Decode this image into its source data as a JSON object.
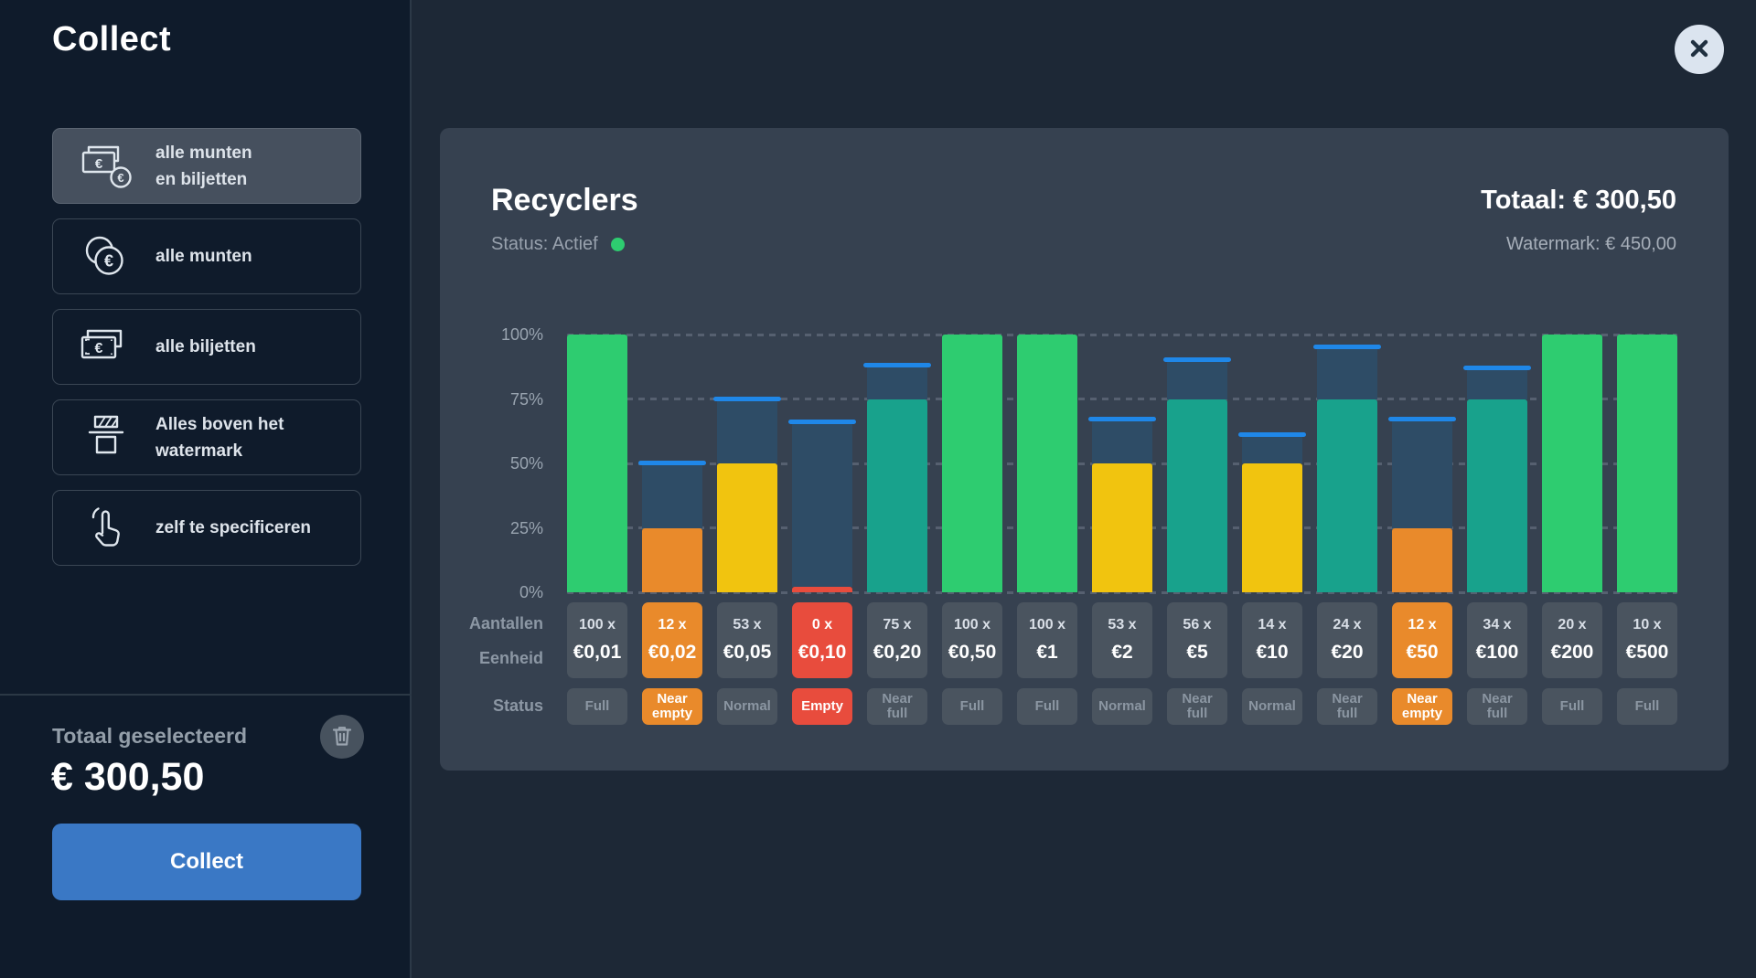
{
  "sidebar": {
    "title": "Collect",
    "options": [
      {
        "icon": "notes-and-coin-icon",
        "lines": [
          "alle munten",
          "en biljetten"
        ],
        "selected": true
      },
      {
        "icon": "coins-icon",
        "lines": [
          "alle munten"
        ],
        "selected": false
      },
      {
        "icon": "banknote-icon",
        "lines": [
          "alle biljetten"
        ],
        "selected": false
      },
      {
        "icon": "watermark-box-icon",
        "lines": [
          "Alles boven het",
          "watermark"
        ],
        "selected": false
      },
      {
        "icon": "hand-tap-icon",
        "lines": [
          "zelf te specificeren"
        ],
        "selected": false
      }
    ],
    "total_selected_label": "Totaal geselecteerd",
    "total_selected_value": "€ 300,50",
    "collect_button_label": "Collect"
  },
  "panel": {
    "title": "Recyclers",
    "status_label": "Status: Actief",
    "total_label": "Totaal: € 300,50",
    "watermark_label": "Watermark: € 450,00"
  },
  "chart_data": {
    "type": "bar",
    "title": "Recyclers",
    "yticks": [
      "100%",
      "75%",
      "50%",
      "25%",
      "0%"
    ],
    "ylim": [
      0,
      100
    ],
    "grid": "dashed horizontal",
    "row_labels": {
      "counts": "Aantallen",
      "unit": "Eenheid",
      "status": "Status"
    },
    "columns": [
      {
        "unit": "€0,01",
        "count": "100 x",
        "fill_pct": 100,
        "watermark_pct": null,
        "status": "Full",
        "level": "full"
      },
      {
        "unit": "€0,02",
        "count": "12 x",
        "fill_pct": 25,
        "watermark_pct": 50,
        "status": "Near empty",
        "level": "near-empty"
      },
      {
        "unit": "€0,05",
        "count": "53 x",
        "fill_pct": 50,
        "watermark_pct": 75,
        "status": "Normal",
        "level": "normal"
      },
      {
        "unit": "€0,10",
        "count": "0 x",
        "fill_pct": 2,
        "watermark_pct": 66,
        "status": "Empty",
        "level": "empty"
      },
      {
        "unit": "€0,20",
        "count": "75 x",
        "fill_pct": 75,
        "watermark_pct": 88,
        "status": "Near full",
        "level": "near-full"
      },
      {
        "unit": "€0,50",
        "count": "100 x",
        "fill_pct": 100,
        "watermark_pct": null,
        "status": "Full",
        "level": "full"
      },
      {
        "unit": "€1",
        "count": "100 x",
        "fill_pct": 100,
        "watermark_pct": null,
        "status": "Full",
        "level": "full"
      },
      {
        "unit": "€2",
        "count": "53 x",
        "fill_pct": 50,
        "watermark_pct": 67,
        "status": "Normal",
        "level": "normal"
      },
      {
        "unit": "€5",
        "count": "56 x",
        "fill_pct": 75,
        "watermark_pct": 90,
        "status": "Near full",
        "level": "near-full"
      },
      {
        "unit": "€10",
        "count": "14 x",
        "fill_pct": 50,
        "watermark_pct": 61,
        "status": "Normal",
        "level": "normal"
      },
      {
        "unit": "€20",
        "count": "24 x",
        "fill_pct": 75,
        "watermark_pct": 95,
        "status": "Near full",
        "level": "near-full"
      },
      {
        "unit": "€50",
        "count": "12 x",
        "fill_pct": 25,
        "watermark_pct": 67,
        "status": "Near empty",
        "level": "near-empty"
      },
      {
        "unit": "€100",
        "count": "34 x",
        "fill_pct": 75,
        "watermark_pct": 87,
        "status": "Near full",
        "level": "near-full"
      },
      {
        "unit": "€200",
        "count": "20 x",
        "fill_pct": 100,
        "watermark_pct": null,
        "status": "Full",
        "level": "full"
      },
      {
        "unit": "€500",
        "count": "10 x",
        "fill_pct": 100,
        "watermark_pct": null,
        "status": "Full",
        "level": "full"
      }
    ],
    "colors": {
      "full": "#2ecc70",
      "near-full": "#18a28c",
      "normal": "#f1c40f",
      "near-empty": "#e98a2b",
      "empty": "#e84c3d",
      "capacity_region": "#2e4c66",
      "watermark_line": "#1f87e8",
      "status_ok_green": "#2ecc70"
    }
  }
}
